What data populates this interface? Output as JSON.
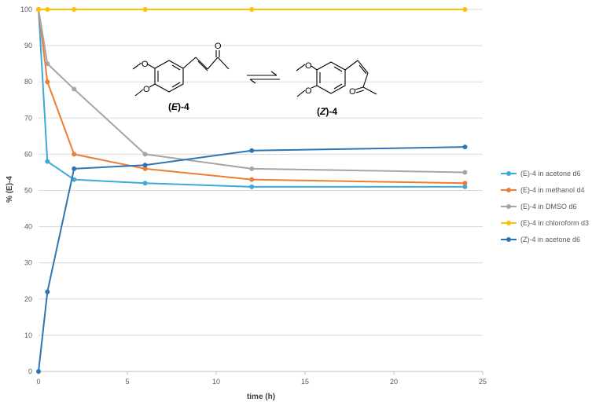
{
  "chart_data": {
    "type": "line",
    "xlabel": "time (h)",
    "ylabel": "% (E)-4",
    "xlim": [
      0,
      25
    ],
    "ylim": [
      0,
      100
    ],
    "xticks": [
      0,
      5,
      10,
      15,
      20,
      25
    ],
    "yticks": [
      0,
      10,
      20,
      30,
      40,
      50,
      60,
      70,
      80,
      90,
      100
    ],
    "grid": "horizontal",
    "legend_position": "right",
    "series": [
      {
        "name": "(E)-4 in acetone d6",
        "color": "#3fa9db",
        "points": [
          [
            0,
            100
          ],
          [
            0.5,
            58
          ],
          [
            2,
            53
          ],
          [
            6,
            52
          ],
          [
            12,
            51
          ],
          [
            24,
            51
          ]
        ]
      },
      {
        "name": "(E)-4 in methanol d4",
        "color": "#ed7d31",
        "points": [
          [
            0,
            100
          ],
          [
            0.5,
            80
          ],
          [
            2,
            60
          ],
          [
            6,
            56
          ],
          [
            12,
            53
          ],
          [
            24,
            52
          ]
        ]
      },
      {
        "name": "(E)-4 in DMSO d6",
        "color": "#a5a5a5",
        "points": [
          [
            0,
            100
          ],
          [
            0.5,
            85
          ],
          [
            2,
            78
          ],
          [
            6,
            60
          ],
          [
            12,
            56
          ],
          [
            24,
            55
          ]
        ]
      },
      {
        "name": "(E)-4 in chloroform d3",
        "color": "#ffc000",
        "points": [
          [
            0,
            100
          ],
          [
            0.5,
            100
          ],
          [
            2,
            100
          ],
          [
            6,
            100
          ],
          [
            12,
            100
          ],
          [
            24,
            100
          ]
        ]
      },
      {
        "name": "(Z)-4 in acetone d6",
        "color": "#2e75b6",
        "points": [
          [
            0,
            0
          ],
          [
            0.5,
            22
          ],
          [
            2,
            56
          ],
          [
            6,
            57
          ],
          [
            12,
            61
          ],
          [
            24,
            62
          ]
        ]
      }
    ]
  },
  "annotation": {
    "left_label_prefix": "(",
    "left_label_italic": "E",
    "left_label_suffix": ")-4",
    "right_label_prefix": "(",
    "right_label_italic": "Z",
    "right_label_suffix": ")-4",
    "atom_oxygen": "O"
  }
}
